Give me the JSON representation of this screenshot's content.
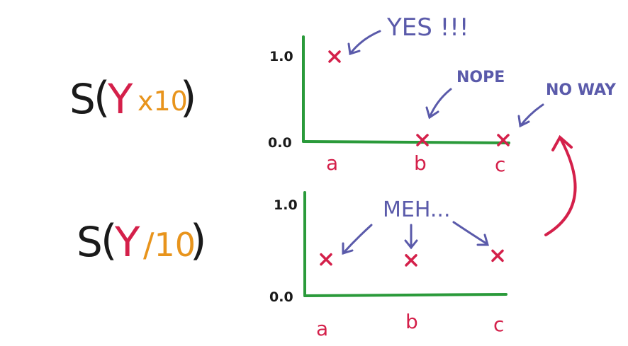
{
  "formulas": {
    "top": {
      "s": "S",
      "open": "(",
      "y": "Y",
      "op": "x10",
      "close": ")"
    },
    "bottom": {
      "s": "S",
      "open": "(",
      "y": "Y",
      "op": "/10",
      "close": ")"
    }
  },
  "colors": {
    "black": "#1a1a1a",
    "red": "#d4204a",
    "orange": "#e8941c",
    "green": "#2a9a3a",
    "blue": "#5a5aaa"
  },
  "chart_data": [
    {
      "type": "scatter",
      "title": "S(Y x10)",
      "categories": [
        "a",
        "b",
        "c"
      ],
      "values": [
        1.0,
        0.0,
        0.0
      ],
      "ylim": [
        0.0,
        1.0
      ],
      "ytick_labels": [
        "1.0",
        "0.0"
      ],
      "marker": "x",
      "annotations": [
        "YES !!!",
        "NOPE",
        "NO WAY"
      ]
    },
    {
      "type": "scatter",
      "title": "S(Y/10)",
      "categories": [
        "a",
        "b",
        "c"
      ],
      "values": [
        0.38,
        0.37,
        0.42
      ],
      "ylim": [
        0.0,
        1.0
      ],
      "ytick_labels": [
        "1.0",
        "0.0"
      ],
      "marker": "x",
      "annotations": [
        "MEH..."
      ]
    }
  ]
}
